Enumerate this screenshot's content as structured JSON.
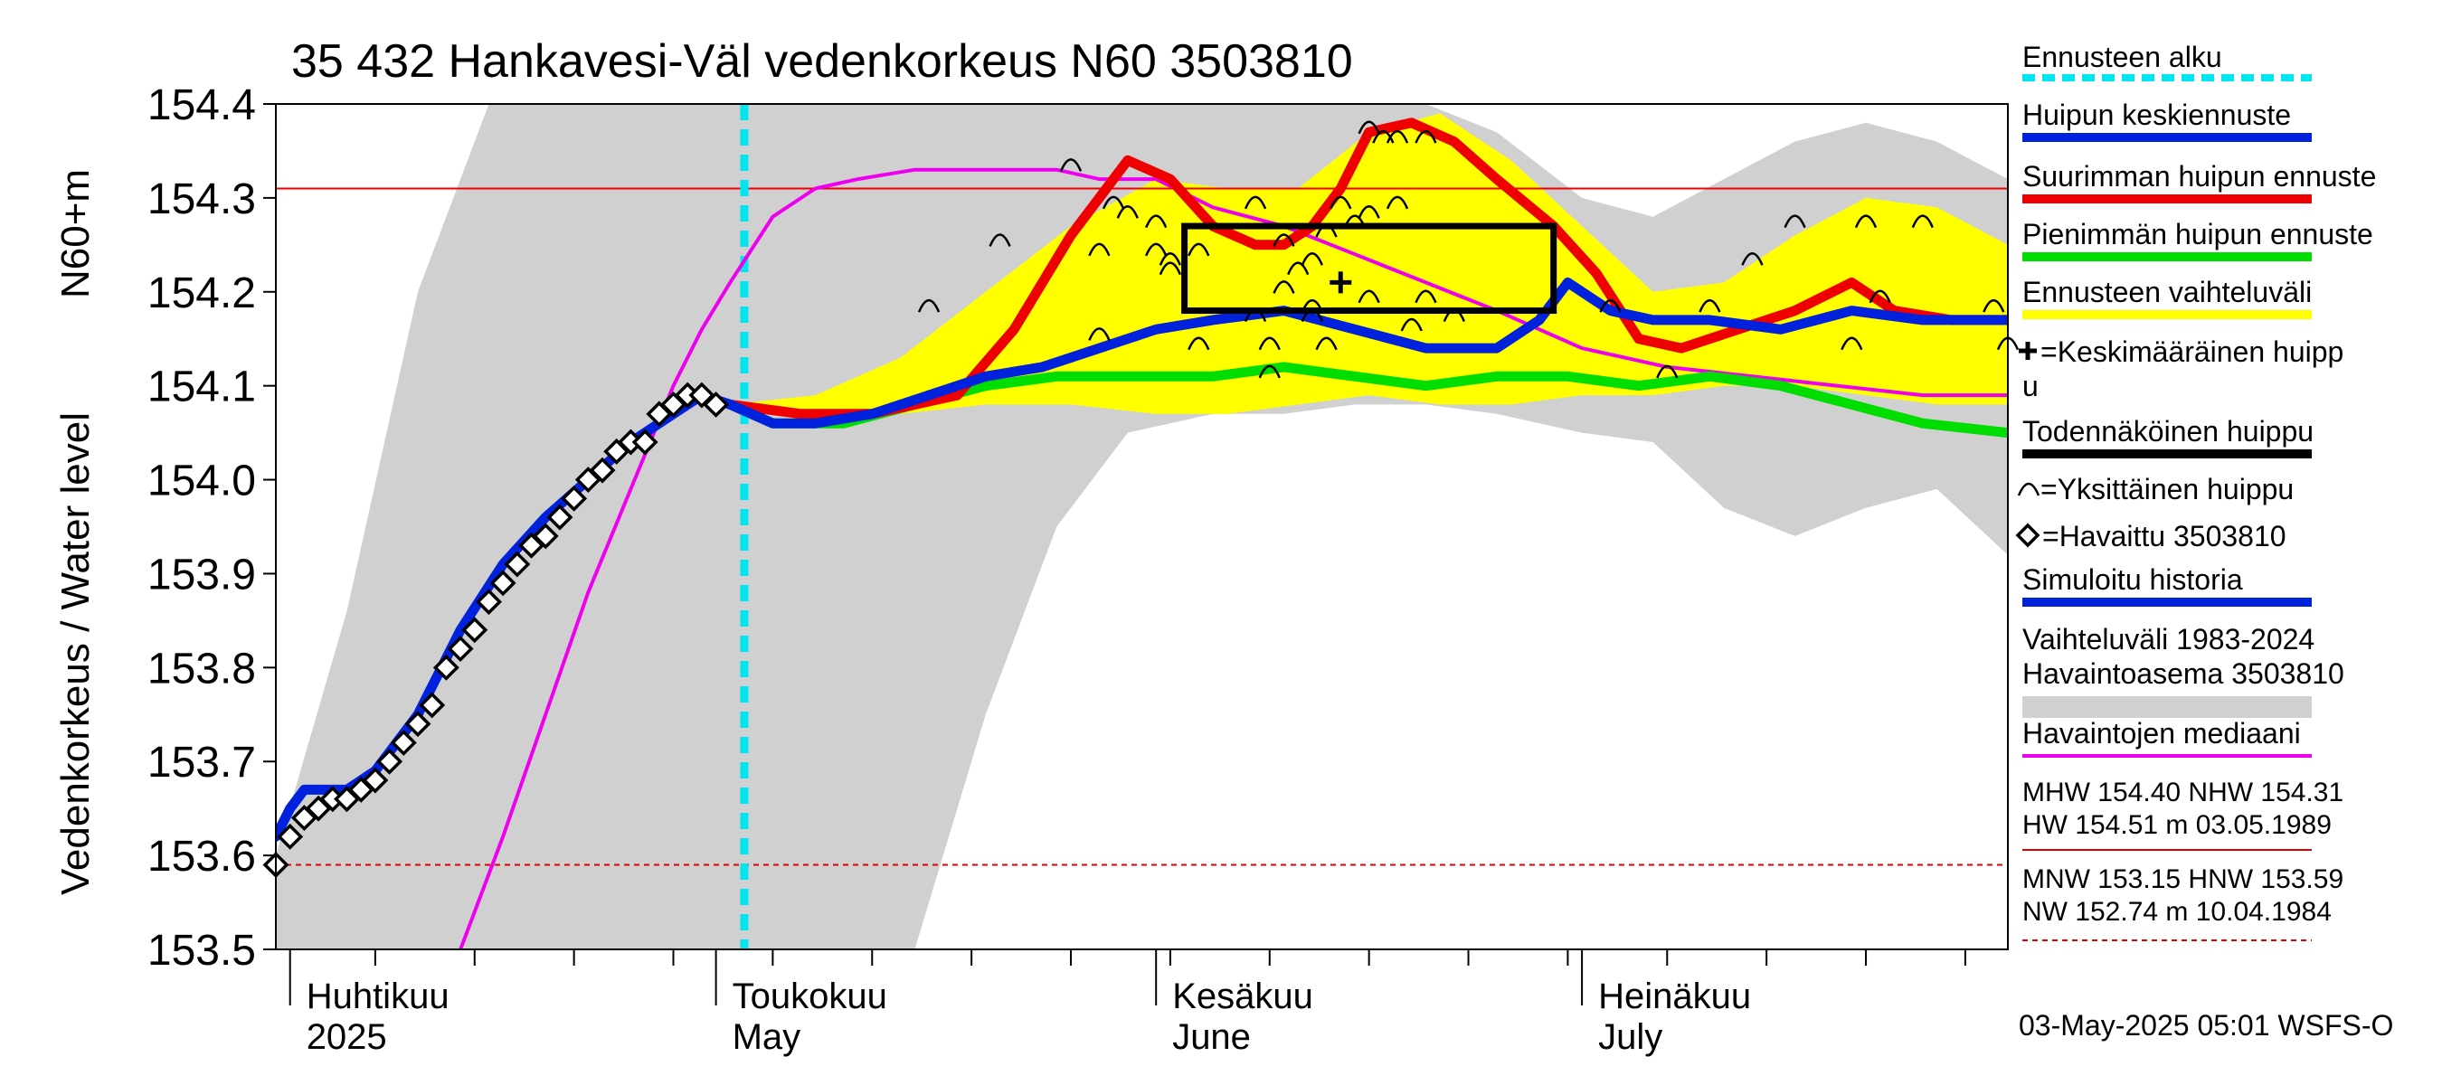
{
  "chart_data": {
    "type": "line",
    "title": "35 432 Hankavesi-Väl vedenkorkeus N60 3503810",
    "ylabel_unit": "N60+m",
    "ylabel": "Vedenkorkeus / Water level",
    "ylim": [
      153.5,
      154.4
    ],
    "yticks": [
      "153.5",
      "153.6",
      "153.7",
      "153.8",
      "153.9",
      "154.0",
      "154.1",
      "154.2",
      "154.3",
      "154.4"
    ],
    "x_range": [
      "2025-03-31",
      "2025-07-31"
    ],
    "month_labels": [
      {
        "fi": "Huhtikuu",
        "en": "2025",
        "date": "2025-04-01"
      },
      {
        "fi": "Toukokuu",
        "en": "May",
        "date": "2025-05-01"
      },
      {
        "fi": "Kesäkuu",
        "en": "June",
        "date": "2025-06-01"
      },
      {
        "fi": "Heinäkuu",
        "en": "July",
        "date": "2025-07-01"
      }
    ],
    "forecast_start": "2025-05-03",
    "reference_lines": {
      "MHW": 154.4,
      "NHW": 154.31,
      "HNW": 153.59
    },
    "observed": {
      "name": "=Havaittu 3503810",
      "x": [
        "2025-03-31",
        "2025-04-01",
        "2025-04-02",
        "2025-04-03",
        "2025-04-04",
        "2025-04-05",
        "2025-04-06",
        "2025-04-07",
        "2025-04-08",
        "2025-04-09",
        "2025-04-10",
        "2025-04-11",
        "2025-04-12",
        "2025-04-13",
        "2025-04-14",
        "2025-04-15",
        "2025-04-16",
        "2025-04-17",
        "2025-04-18",
        "2025-04-19",
        "2025-04-20",
        "2025-04-21",
        "2025-04-22",
        "2025-04-23",
        "2025-04-24",
        "2025-04-25",
        "2025-04-26",
        "2025-04-27",
        "2025-04-28",
        "2025-04-29",
        "2025-04-30",
        "2025-05-01"
      ],
      "y": [
        153.59,
        153.62,
        153.64,
        153.65,
        153.66,
        153.66,
        153.67,
        153.68,
        153.7,
        153.72,
        153.74,
        153.76,
        153.8,
        153.82,
        153.84,
        153.87,
        153.89,
        153.91,
        153.93,
        153.94,
        153.96,
        153.98,
        154.0,
        154.01,
        154.03,
        154.04,
        154.04,
        154.07,
        154.08,
        154.09,
        154.09,
        154.08
      ]
    },
    "series": [
      {
        "name": "Simuloitu historia",
        "color": "#0022dd",
        "width": 11,
        "x": [
          "2025-03-31",
          "2025-04-01",
          "2025-04-02",
          "2025-04-03",
          "2025-04-05",
          "2025-04-07",
          "2025-04-10",
          "2025-04-13",
          "2025-04-16",
          "2025-04-19",
          "2025-04-22",
          "2025-04-25",
          "2025-04-28",
          "2025-04-30",
          "2025-05-02",
          "2025-05-05",
          "2025-05-08",
          "2025-05-12",
          "2025-05-16",
          "2025-05-20",
          "2025-05-24",
          "2025-05-28",
          "2025-06-01",
          "2025-06-05",
          "2025-06-10",
          "2025-06-15",
          "2025-06-20",
          "2025-06-25",
          "2025-06-28",
          "2025-06-30",
          "2025-07-03",
          "2025-07-06",
          "2025-07-10",
          "2025-07-15",
          "2025-07-20",
          "2025-07-25",
          "2025-07-31"
        ],
        "y": [
          153.62,
          153.65,
          153.67,
          153.67,
          153.67,
          153.69,
          153.75,
          153.84,
          153.91,
          153.96,
          154.0,
          154.04,
          154.07,
          154.09,
          154.08,
          154.06,
          154.06,
          154.07,
          154.09,
          154.11,
          154.12,
          154.14,
          154.16,
          154.17,
          154.18,
          154.16,
          154.14,
          154.14,
          154.17,
          154.21,
          154.18,
          154.17,
          154.17,
          154.16,
          154.18,
          154.17,
          154.17
        ]
      },
      {
        "name": "Suurimman huipun ennuste",
        "color": "#ee0000",
        "width": 11,
        "x": [
          "2025-05-02",
          "2025-05-07",
          "2025-05-12",
          "2025-05-18",
          "2025-05-22",
          "2025-05-26",
          "2025-05-30",
          "2025-06-02",
          "2025-06-05",
          "2025-06-08",
          "2025-06-10",
          "2025-06-12",
          "2025-06-14",
          "2025-06-16",
          "2025-06-19",
          "2025-06-22",
          "2025-06-25",
          "2025-06-29",
          "2025-07-02",
          "2025-07-05",
          "2025-07-08",
          "2025-07-12",
          "2025-07-16",
          "2025-07-20",
          "2025-07-23",
          "2025-07-27",
          "2025-07-31"
        ],
        "y": [
          154.08,
          154.07,
          154.07,
          154.09,
          154.16,
          154.26,
          154.34,
          154.32,
          154.27,
          154.25,
          154.25,
          154.27,
          154.31,
          154.37,
          154.38,
          154.36,
          154.32,
          154.27,
          154.22,
          154.15,
          154.14,
          154.16,
          154.18,
          154.21,
          154.18,
          154.17,
          154.17
        ]
      },
      {
        "name": "Pienimmän huipun ennuste",
        "color": "#00dd00",
        "width": 11,
        "x": [
          "2025-05-02",
          "2025-05-05",
          "2025-05-10",
          "2025-05-15",
          "2025-05-20",
          "2025-05-25",
          "2025-06-01",
          "2025-06-05",
          "2025-06-10",
          "2025-06-15",
          "2025-06-20",
          "2025-06-25",
          "2025-06-30",
          "2025-07-05",
          "2025-07-10",
          "2025-07-15",
          "2025-07-20",
          "2025-07-25",
          "2025-07-31"
        ],
        "y": [
          154.08,
          154.06,
          154.06,
          154.08,
          154.1,
          154.11,
          154.11,
          154.11,
          154.12,
          154.11,
          154.1,
          154.11,
          154.11,
          154.1,
          154.11,
          154.1,
          154.08,
          154.06,
          154.05
        ]
      },
      {
        "name": "Havaintojen mediaani",
        "color": "#ee00ee",
        "width": 4,
        "x": [
          "2025-04-13",
          "2025-04-16",
          "2025-04-19",
          "2025-04-22",
          "2025-04-25",
          "2025-04-28",
          "2025-04-30",
          "2025-05-02",
          "2025-05-05",
          "2025-05-08",
          "2025-05-11",
          "2025-05-15",
          "2025-05-20",
          "2025-05-25",
          "2025-05-28",
          "2025-06-01",
          "2025-06-05",
          "2025-06-10",
          "2025-06-15",
          "2025-06-20",
          "2025-06-25",
          "2025-07-01",
          "2025-07-07",
          "2025-07-13",
          "2025-07-19",
          "2025-07-25",
          "2025-07-31"
        ],
        "y": [
          153.5,
          153.62,
          153.75,
          153.88,
          153.99,
          154.1,
          154.16,
          154.21,
          154.28,
          154.31,
          154.32,
          154.33,
          154.33,
          154.33,
          154.32,
          154.32,
          154.29,
          154.27,
          154.24,
          154.21,
          154.18,
          154.14,
          154.12,
          154.11,
          154.1,
          154.09,
          154.09
        ]
      }
    ],
    "forecast_band": {
      "name": "Ennusteen vaihteluväli",
      "color": "#ffff00",
      "x": [
        "2025-05-02",
        "2025-05-08",
        "2025-05-14",
        "2025-05-20",
        "2025-05-26",
        "2025-06-01",
        "2025-06-06",
        "2025-06-11",
        "2025-06-16",
        "2025-06-21",
        "2025-06-26",
        "2025-07-01",
        "2025-07-06",
        "2025-07-11",
        "2025-07-16",
        "2025-07-21",
        "2025-07-26",
        "2025-07-31"
      ],
      "upper": [
        154.08,
        154.09,
        154.13,
        154.2,
        154.27,
        154.32,
        154.31,
        154.31,
        154.37,
        154.39,
        154.34,
        154.27,
        154.2,
        154.21,
        154.26,
        154.3,
        154.29,
        154.25
      ],
      "lower": [
        154.08,
        154.06,
        154.07,
        154.08,
        154.08,
        154.07,
        154.07,
        154.08,
        154.09,
        154.08,
        154.08,
        154.09,
        154.09,
        154.1,
        154.1,
        154.09,
        154.08,
        154.08
      ]
    },
    "history_band": {
      "name": "Vaihteluväli 1983-2024 Havaintoasema 3503810",
      "color": "#d0d0d0",
      "x": [
        "2025-03-31",
        "2025-04-05",
        "2025-04-10",
        "2025-04-15",
        "2025-04-20",
        "2025-04-25",
        "2025-04-30",
        "2025-05-05",
        "2025-05-10",
        "2025-05-15",
        "2025-05-20",
        "2025-05-25",
        "2025-05-30",
        "2025-06-05",
        "2025-06-10",
        "2025-06-15",
        "2025-06-20",
        "2025-06-25",
        "2025-07-01",
        "2025-07-06",
        "2025-07-11",
        "2025-07-16",
        "2025-07-21",
        "2025-07-26",
        "2025-07-31"
      ],
      "upper": [
        153.6,
        153.86,
        154.2,
        154.4,
        154.4,
        154.4,
        154.4,
        154.4,
        154.4,
        154.4,
        154.4,
        154.4,
        154.4,
        154.4,
        154.4,
        154.4,
        154.4,
        154.37,
        154.3,
        154.28,
        154.32,
        154.36,
        154.38,
        154.36,
        154.32
      ],
      "lower": [
        153.5,
        153.5,
        153.5,
        153.5,
        153.5,
        153.5,
        153.5,
        153.5,
        153.5,
        153.5,
        153.75,
        153.95,
        154.05,
        154.07,
        154.07,
        154.08,
        154.08,
        154.07,
        154.05,
        154.04,
        153.97,
        153.94,
        153.97,
        153.99,
        153.92
      ]
    },
    "probable_peak_box": {
      "name": "Todennäköinen huippu",
      "x": [
        "2025-06-03",
        "2025-06-29"
      ],
      "y": [
        154.18,
        154.27
      ]
    },
    "mean_peak": {
      "name": "=Keskimääräinen huipp u",
      "x": "2025-06-14",
      "y": 154.21
    },
    "individual_peaks": {
      "name": "=Yksittäinen huippu",
      "x": [
        "2025-05-26",
        "2025-05-29",
        "2025-05-30",
        "2025-06-01",
        "2025-05-28",
        "2025-06-01",
        "2025-06-02",
        "2025-06-02",
        "2025-05-21",
        "2025-05-16",
        "2025-05-28",
        "2025-06-04",
        "2025-06-04",
        "2025-06-08",
        "2025-06-08",
        "2025-06-09",
        "2025-06-10",
        "2025-06-11",
        "2025-06-12",
        "2025-06-13",
        "2025-06-14",
        "2025-06-15",
        "2025-06-16",
        "2025-06-17",
        "2025-06-18",
        "2025-06-16",
        "2025-06-18",
        "2025-06-20",
        "2025-06-22",
        "2025-06-12",
        "2025-06-13",
        "2025-06-09",
        "2025-06-12",
        "2025-06-10",
        "2025-06-16",
        "2025-06-19",
        "2025-06-20",
        "2025-07-03",
        "2025-07-07",
        "2025-07-13",
        "2025-07-10",
        "2025-07-16",
        "2025-07-20",
        "2025-07-25",
        "2025-07-22",
        "2025-07-21",
        "2025-07-30",
        "2025-07-31"
      ],
      "y": [
        154.34,
        154.3,
        154.29,
        154.28,
        154.25,
        154.25,
        154.24,
        154.23,
        154.26,
        154.19,
        154.16,
        154.15,
        154.25,
        154.18,
        154.3,
        154.12,
        154.21,
        154.23,
        154.24,
        154.27,
        154.3,
        154.28,
        154.29,
        154.37,
        154.37,
        154.38,
        154.3,
        154.2,
        154.18,
        154.19,
        154.15,
        154.15,
        154.18,
        154.26,
        154.2,
        154.17,
        154.37,
        154.19,
        154.12,
        154.24,
        154.19,
        154.28,
        154.15,
        154.28,
        154.2,
        154.28,
        154.19,
        154.15
      ]
    },
    "legend": [
      {
        "label": "Ennusteen alku",
        "style": "dashed",
        "color": "#00e5ee"
      },
      {
        "label": "Huipun keskiennuste",
        "style": "line",
        "color": "#0022dd"
      },
      {
        "label": "Suurimman huipun ennuste",
        "style": "line",
        "color": "#ee0000"
      },
      {
        "label": "Pienimmän huipun ennuste",
        "style": "line",
        "color": "#00dd00"
      },
      {
        "label": "Ennusteen vaihteluväli",
        "style": "line",
        "color": "#ffff00"
      },
      {
        "label": "=Keskimääräinen huipp",
        "label2": "u",
        "style": "plus-marker",
        "color": "#000000"
      },
      {
        "label": "Todennäköinen huippu",
        "style": "line",
        "color": "#000000"
      },
      {
        "label": "=Yksittäinen huippu",
        "style": "arc-marker",
        "color": "#000000"
      },
      {
        "label": "=Havaittu 3503810",
        "style": "diamond-marker",
        "color": "#000000"
      },
      {
        "label": "Simuloitu historia",
        "style": "line",
        "color": "#0022dd"
      },
      {
        "label": "Vaihteluväli 1983-2024",
        "label2": " Havaintoasema 3503810",
        "style": "line",
        "color": "#d0d0d0"
      },
      {
        "label": "Havaintojen mediaani",
        "style": "thin-line",
        "color": "#ee00ee"
      }
    ],
    "stats": {
      "high_1": "MHW 154.40 NHW 154.31",
      "high_2": "HW 154.51 m 03.05.1989",
      "low_1": "MNW 153.15 HNW 153.59",
      "low_2": "NW 152.74 m 10.04.1984"
    },
    "footer": "03-May-2025 05:01 WSFS-O"
  }
}
